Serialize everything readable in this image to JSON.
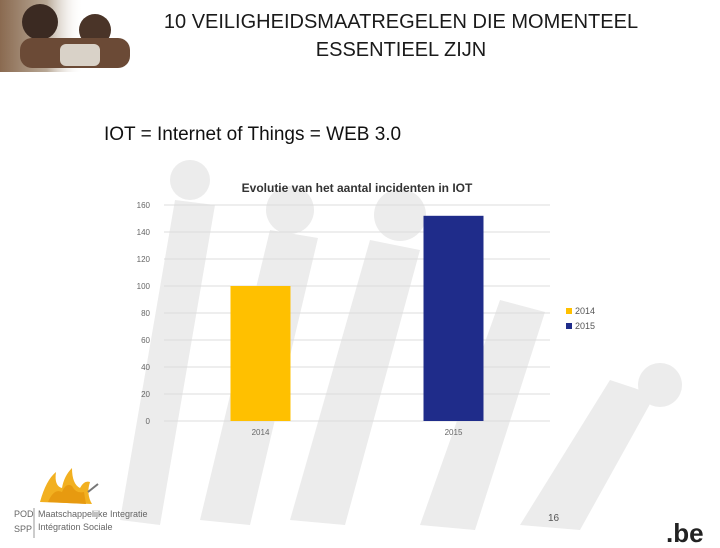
{
  "slide": {
    "title_line1": "10 VEILIGHEIDSMAATREGELEN DIE MOMENTEEL",
    "title_line2": "ESSENTIEEL ZIJN",
    "subtitle": "IOT = Internet of Things = WEB 3.0",
    "page_number": "16"
  },
  "footer": {
    "org_short_top": "POD",
    "org_short_bottom": "SPP",
    "org_name_nl": "Maatschappelijke Integratie",
    "org_name_fr": "Intégration Sociale",
    "be_logo": ".be"
  },
  "colors": {
    "bar_2014": "#FFC000",
    "bar_2015": "#1F2C8A",
    "grid": "#dddddd",
    "watermark": "#ececec"
  },
  "chart_data": {
    "type": "bar",
    "title": "Evolutie van het aantal incidenten in IOT",
    "categories": [
      "2014",
      "2015"
    ],
    "values": [
      100,
      152
    ],
    "ylim": [
      0,
      160
    ],
    "yticks": [
      0,
      20,
      40,
      60,
      80,
      100,
      120,
      140,
      160
    ],
    "legend": [
      "2014",
      "2015"
    ],
    "legend_position": "right",
    "xlabel": "",
    "ylabel": "",
    "grid": true
  }
}
